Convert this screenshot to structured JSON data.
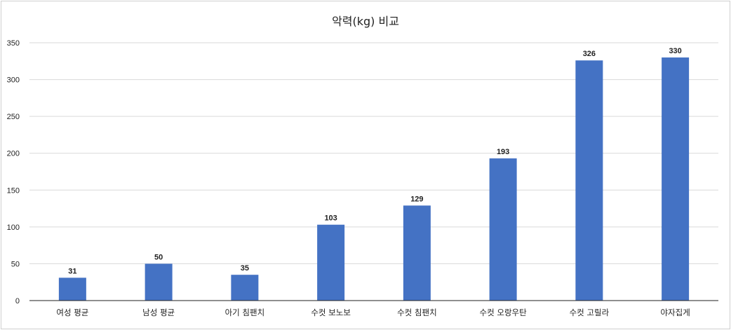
{
  "chart_data": {
    "type": "bar",
    "title": "악력(kg) 비교",
    "categories": [
      "여성 평균",
      "남성 평균",
      "아기 침팬치",
      "수컷 보노보",
      "수컷 침팬치",
      "수컷 오랑우탄",
      "수컷 고릴라",
      "야자집게"
    ],
    "values": [
      31,
      50,
      35,
      103,
      129,
      193,
      326,
      330
    ],
    "xlabel": "",
    "ylabel": "",
    "ylim": [
      0,
      350
    ],
    "yticks": [
      0,
      50,
      100,
      150,
      200,
      250,
      300,
      350
    ],
    "grid": true,
    "legend": "none",
    "bar_color": "#4472C4",
    "grid_color": "#d9d9d9",
    "axis_color": "#222222"
  }
}
